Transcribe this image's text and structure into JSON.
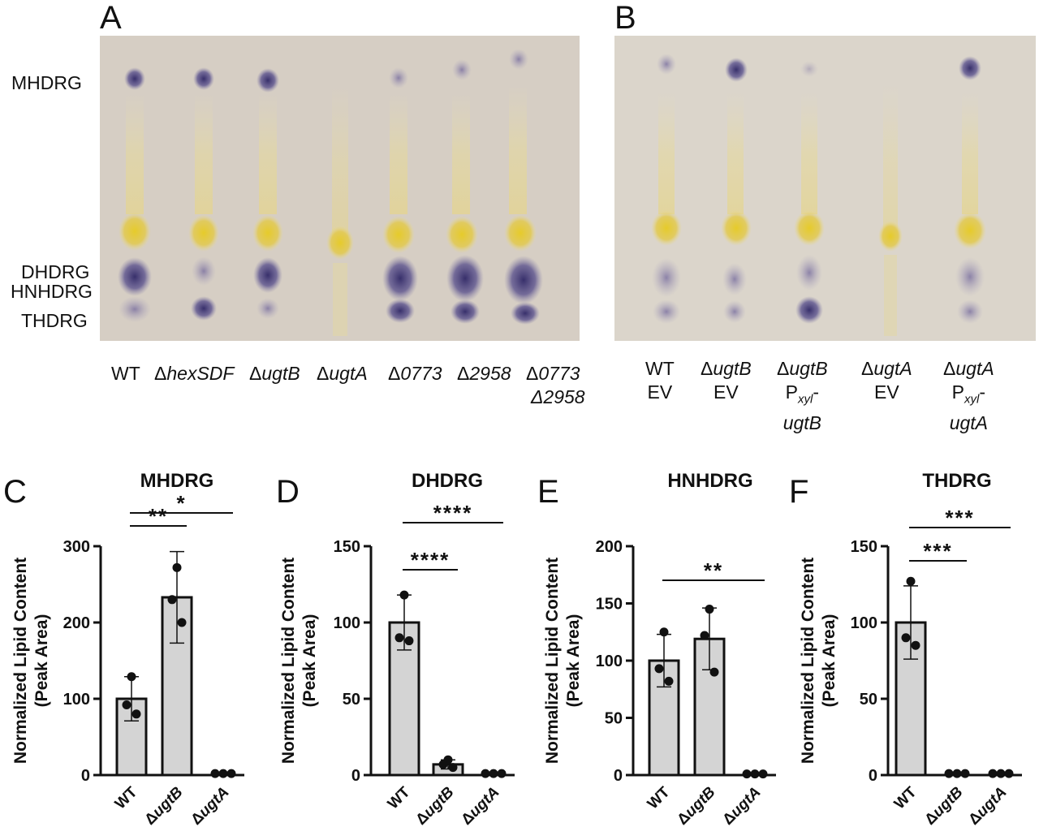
{
  "figure": {
    "panel_letters": [
      "A",
      "B",
      "C",
      "D",
      "E",
      "F"
    ],
    "tlc_band_labels": [
      "MHDRG",
      "DHDRG",
      "HNHDRG",
      "THDRG"
    ],
    "panel_a_lanes": [
      {
        "prefix": "",
        "main": "WT",
        "line2": ""
      },
      {
        "prefix": "Δ",
        "main": "hexSDF",
        "line2": ""
      },
      {
        "prefix": "Δ",
        "main": "ugtB",
        "line2": ""
      },
      {
        "prefix": "Δ",
        "main": "ugtA",
        "line2": ""
      },
      {
        "prefix": "Δ",
        "main": "0773",
        "line2": ""
      },
      {
        "prefix": "Δ",
        "main": "2958",
        "line2": ""
      },
      {
        "prefix": "Δ",
        "main": "0773",
        "line2": "Δ2958"
      }
    ],
    "panel_b_lanes": [
      {
        "line1": "WT",
        "line2": "EV",
        "line3": ""
      },
      {
        "line1": "ΔugtB",
        "line2": "EV",
        "line3": ""
      },
      {
        "line1": "ΔugtB",
        "line2": "Pxyl-",
        "line3": "ugtB"
      },
      {
        "line1": "ΔugtA",
        "line2": "EV",
        "line3": ""
      },
      {
        "line1": "ΔugtA",
        "line2": "Pxyl-",
        "line3": "ugtA"
      }
    ],
    "colors": {
      "plate_a": "#d9d2c9",
      "plate_b": "#dcd6cc",
      "purple_spot": "#3e3577",
      "yellow_spot": "#e3c832",
      "bar_fill": "#d4d4d4",
      "bar_stroke": "#111111"
    }
  },
  "chart_data": [
    {
      "panel": "C",
      "type": "bar",
      "title": "MHDRG",
      "ylabel": "Normalized Lipid Content (Peak Area)",
      "ylim": [
        0,
        300
      ],
      "yticks": [
        0,
        100,
        200,
        300
      ],
      "categories": [
        "WT",
        "ΔugtB",
        "ΔugtA"
      ],
      "values": [
        100,
        233,
        0
      ],
      "error": [
        29,
        60,
        0
      ],
      "points": [
        [
          129,
          92,
          80
        ],
        [
          272,
          230,
          200
        ],
        [
          2,
          2,
          2
        ]
      ],
      "significance": [
        {
          "from": "WT",
          "to": "ΔugtB",
          "label": "**"
        },
        {
          "from": "WT",
          "to": "ΔugtA",
          "label": "*"
        }
      ]
    },
    {
      "panel": "D",
      "type": "bar",
      "title": "DHDRG",
      "ylabel": "Normalized Lipid Content (Peak Area)",
      "ylim": [
        0,
        150
      ],
      "yticks": [
        0,
        50,
        100,
        150
      ],
      "categories": [
        "WT",
        "ΔugtB",
        "ΔugtA"
      ],
      "values": [
        100,
        7,
        0
      ],
      "error": [
        18,
        3,
        0
      ],
      "points": [
        [
          118,
          90,
          88
        ],
        [
          10,
          7,
          5
        ],
        [
          1,
          1,
          1
        ]
      ],
      "significance": [
        {
          "from": "WT",
          "to": "ΔugtB",
          "label": "****"
        },
        {
          "from": "WT",
          "to": "ΔugtA",
          "label": "****"
        }
      ]
    },
    {
      "panel": "E",
      "type": "bar",
      "title": "HNHDRG",
      "ylabel": "Normalized Lipid Content (Peak Area)",
      "ylim": [
        0,
        200
      ],
      "yticks": [
        0,
        50,
        100,
        150,
        200
      ],
      "categories": [
        "WT",
        "ΔugtB",
        "ΔugtA"
      ],
      "values": [
        100,
        119,
        0
      ],
      "error": [
        23,
        27,
        0
      ],
      "points": [
        [
          125,
          93,
          82
        ],
        [
          145,
          122,
          90
        ],
        [
          1,
          1,
          1
        ]
      ],
      "significance": [
        {
          "from": "WT",
          "to": "ΔugtA",
          "label": "**"
        }
      ]
    },
    {
      "panel": "F",
      "type": "bar",
      "title": "THDRG",
      "ylabel": "Normalized Lipid Content (Peak Area)",
      "ylim": [
        0,
        150
      ],
      "yticks": [
        0,
        50,
        100,
        150
      ],
      "categories": [
        "WT",
        "ΔugtB",
        "ΔugtA"
      ],
      "values": [
        100,
        0,
        0
      ],
      "error": [
        24,
        0,
        0
      ],
      "points": [
        [
          127,
          90,
          85
        ],
        [
          1,
          1,
          1
        ],
        [
          1,
          1,
          1
        ]
      ],
      "significance": [
        {
          "from": "WT",
          "to": "ΔugtB",
          "label": "***"
        },
        {
          "from": "WT",
          "to": "ΔugtA",
          "label": "***"
        }
      ]
    }
  ]
}
